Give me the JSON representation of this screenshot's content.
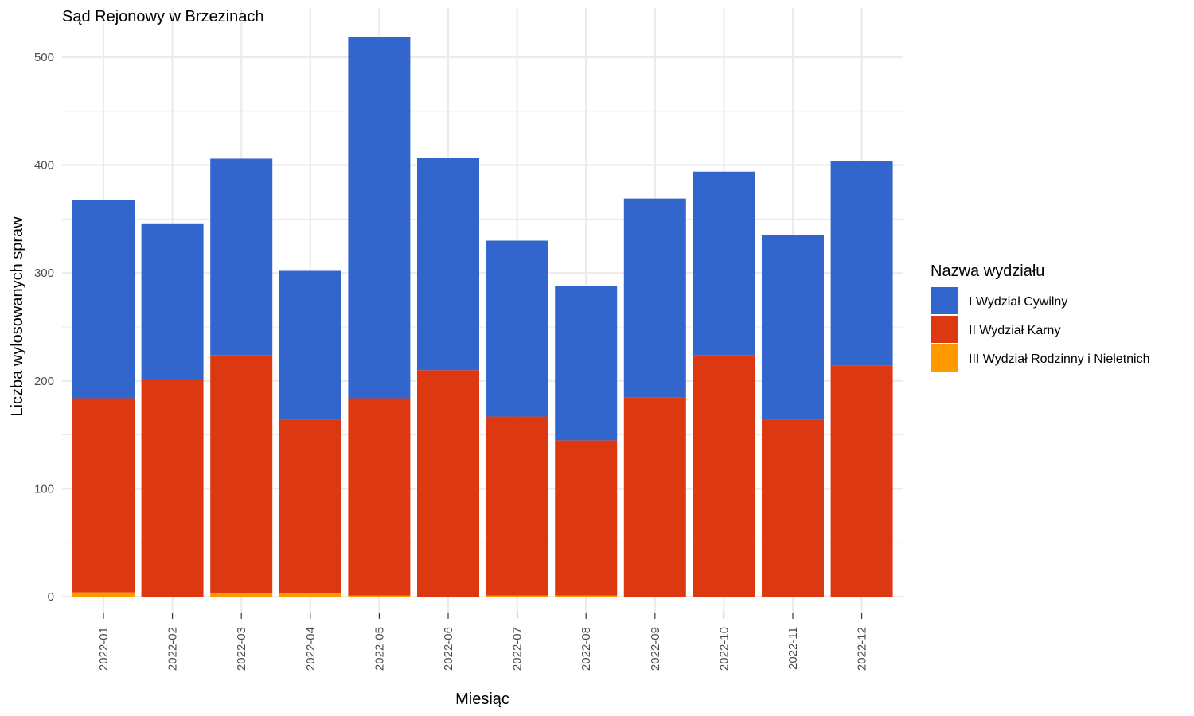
{
  "chart_data": {
    "type": "bar",
    "stacked": true,
    "title": "Sąd Rejonowy w Brzezinach",
    "xlabel": "Miesiąc",
    "ylabel": "Liczba wylosowanych spraw",
    "ylim": [
      0,
      530
    ],
    "yticks": [
      "0",
      "100",
      "200",
      "300",
      "400",
      "500"
    ],
    "grid": true,
    "legend_position": "right",
    "legend_title": "Nazwa wydziału",
    "categories": [
      "2022-01",
      "2022-02",
      "2022-03",
      "2022-04",
      "2022-05",
      "2022-06",
      "2022-07",
      "2022-08",
      "2022-09",
      "2022-10",
      "2022-11",
      "2022-12"
    ],
    "series": [
      {
        "name": "I Wydział Cywilny",
        "color": "#3366cc",
        "values": [
          184,
          144,
          182,
          138,
          335,
          197,
          163,
          143,
          184,
          170,
          171,
          190
        ]
      },
      {
        "name": "II Wydział Karny",
        "color": "#dc3912",
        "values": [
          180,
          202,
          221,
          161,
          183,
          210,
          166,
          144,
          185,
          224,
          164,
          214
        ]
      },
      {
        "name": "III Wydział Rodzinny i Nieletnich",
        "color": "#ff9900",
        "values": [
          4,
          0,
          3,
          3,
          1,
          0,
          1,
          1,
          0,
          0,
          0,
          0
        ]
      }
    ]
  }
}
